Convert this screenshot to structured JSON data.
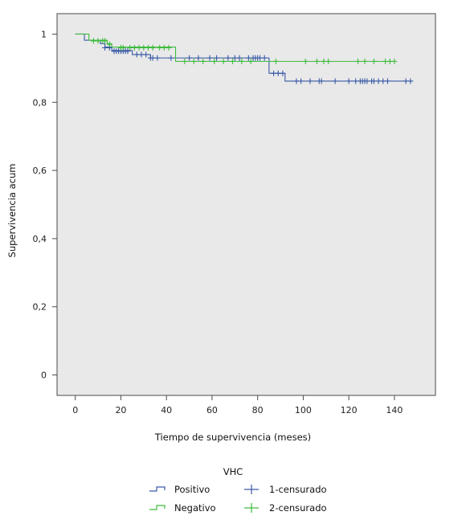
{
  "chart_data": {
    "type": "line",
    "title": "",
    "xlabel": "Tiempo de supervivencia (meses)",
    "ylabel": "Supervivencia acum",
    "xlim": [
      -8,
      158
    ],
    "ylim": [
      -0.06,
      1.06
    ],
    "x_ticks": [
      0,
      20,
      40,
      60,
      80,
      100,
      120,
      140
    ],
    "x_tick_labels": [
      "0",
      "20",
      "40",
      "60",
      "80",
      "100",
      "120",
      "140"
    ],
    "y_ticks": [
      0,
      0.2,
      0.4,
      0.6,
      0.8,
      1
    ],
    "y_tick_labels": [
      "0",
      "0,2",
      "0,4",
      "0,6",
      "0,8",
      "1"
    ],
    "grid": false,
    "plot_background": "#e9e9e9",
    "legend": {
      "title": "VHC",
      "position": "bottom",
      "entries": [
        {
          "label": "Positivo",
          "kind": "step",
          "series": 0
        },
        {
          "label": "Negativo",
          "kind": "step",
          "series": 1
        },
        {
          "label": "1-censurado",
          "kind": "censor",
          "series": 0
        },
        {
          "label": "2-censurado",
          "kind": "censor",
          "series": 1
        }
      ]
    },
    "series": [
      {
        "color": "#3a5aa8",
        "steps": [
          [
            0,
            1.0
          ],
          [
            4,
            0.982
          ],
          [
            11,
            0.972
          ],
          [
            13,
            0.962
          ],
          [
            16,
            0.952
          ],
          [
            25,
            0.94
          ],
          [
            33,
            0.93
          ],
          [
            85,
            0.885
          ],
          [
            92,
            0.862
          ],
          [
            148,
            0.862
          ]
        ],
        "censored": [
          [
            13,
            0.96
          ],
          [
            15,
            0.96
          ],
          [
            17,
            0.95
          ],
          [
            18,
            0.95
          ],
          [
            19,
            0.95
          ],
          [
            20,
            0.95
          ],
          [
            21,
            0.95
          ],
          [
            22,
            0.95
          ],
          [
            23,
            0.95
          ],
          [
            27,
            0.94
          ],
          [
            29,
            0.94
          ],
          [
            31,
            0.94
          ],
          [
            33,
            0.93
          ],
          [
            34,
            0.93
          ],
          [
            36,
            0.93
          ],
          [
            42,
            0.93
          ],
          [
            50,
            0.93
          ],
          [
            54,
            0.93
          ],
          [
            59,
            0.93
          ],
          [
            62,
            0.93
          ],
          [
            67,
            0.93
          ],
          [
            70,
            0.93
          ],
          [
            72,
            0.93
          ],
          [
            76,
            0.93
          ],
          [
            78,
            0.93
          ],
          [
            79,
            0.93
          ],
          [
            80,
            0.93
          ],
          [
            81,
            0.93
          ],
          [
            83,
            0.93
          ],
          [
            87,
            0.885
          ],
          [
            89,
            0.885
          ],
          [
            91,
            0.885
          ],
          [
            97,
            0.862
          ],
          [
            99,
            0.862
          ],
          [
            103,
            0.862
          ],
          [
            107,
            0.862
          ],
          [
            108,
            0.862
          ],
          [
            114,
            0.862
          ],
          [
            120,
            0.862
          ],
          [
            123,
            0.862
          ],
          [
            125,
            0.862
          ],
          [
            126,
            0.862
          ],
          [
            127,
            0.862
          ],
          [
            128,
            0.862
          ],
          [
            130,
            0.862
          ],
          [
            131,
            0.862
          ],
          [
            133,
            0.862
          ],
          [
            135,
            0.862
          ],
          [
            137,
            0.862
          ],
          [
            145,
            0.862
          ],
          [
            147,
            0.862
          ]
        ]
      },
      {
        "color": "#3dbb3d",
        "steps": [
          [
            0,
            1.0
          ],
          [
            6,
            0.982
          ],
          [
            14,
            0.972
          ],
          [
            16,
            0.962
          ],
          [
            44,
            0.92
          ],
          [
            140,
            0.92
          ]
        ],
        "censored": [
          [
            8,
            0.98
          ],
          [
            10,
            0.98
          ],
          [
            12,
            0.98
          ],
          [
            13,
            0.98
          ],
          [
            15,
            0.97
          ],
          [
            20,
            0.96
          ],
          [
            21,
            0.96
          ],
          [
            24,
            0.96
          ],
          [
            26,
            0.96
          ],
          [
            28,
            0.96
          ],
          [
            30,
            0.96
          ],
          [
            32,
            0.96
          ],
          [
            34,
            0.96
          ],
          [
            37,
            0.96
          ],
          [
            39,
            0.96
          ],
          [
            41,
            0.96
          ],
          [
            48,
            0.92
          ],
          [
            52,
            0.92
          ],
          [
            56,
            0.92
          ],
          [
            61,
            0.92
          ],
          [
            65,
            0.92
          ],
          [
            69,
            0.92
          ],
          [
            73,
            0.92
          ],
          [
            77,
            0.92
          ],
          [
            88,
            0.92
          ],
          [
            101,
            0.92
          ],
          [
            106,
            0.92
          ],
          [
            109,
            0.92
          ],
          [
            111,
            0.92
          ],
          [
            124,
            0.92
          ],
          [
            127,
            0.92
          ],
          [
            131,
            0.92
          ],
          [
            136,
            0.92
          ],
          [
            138,
            0.92
          ],
          [
            140,
            0.92
          ]
        ]
      }
    ]
  }
}
